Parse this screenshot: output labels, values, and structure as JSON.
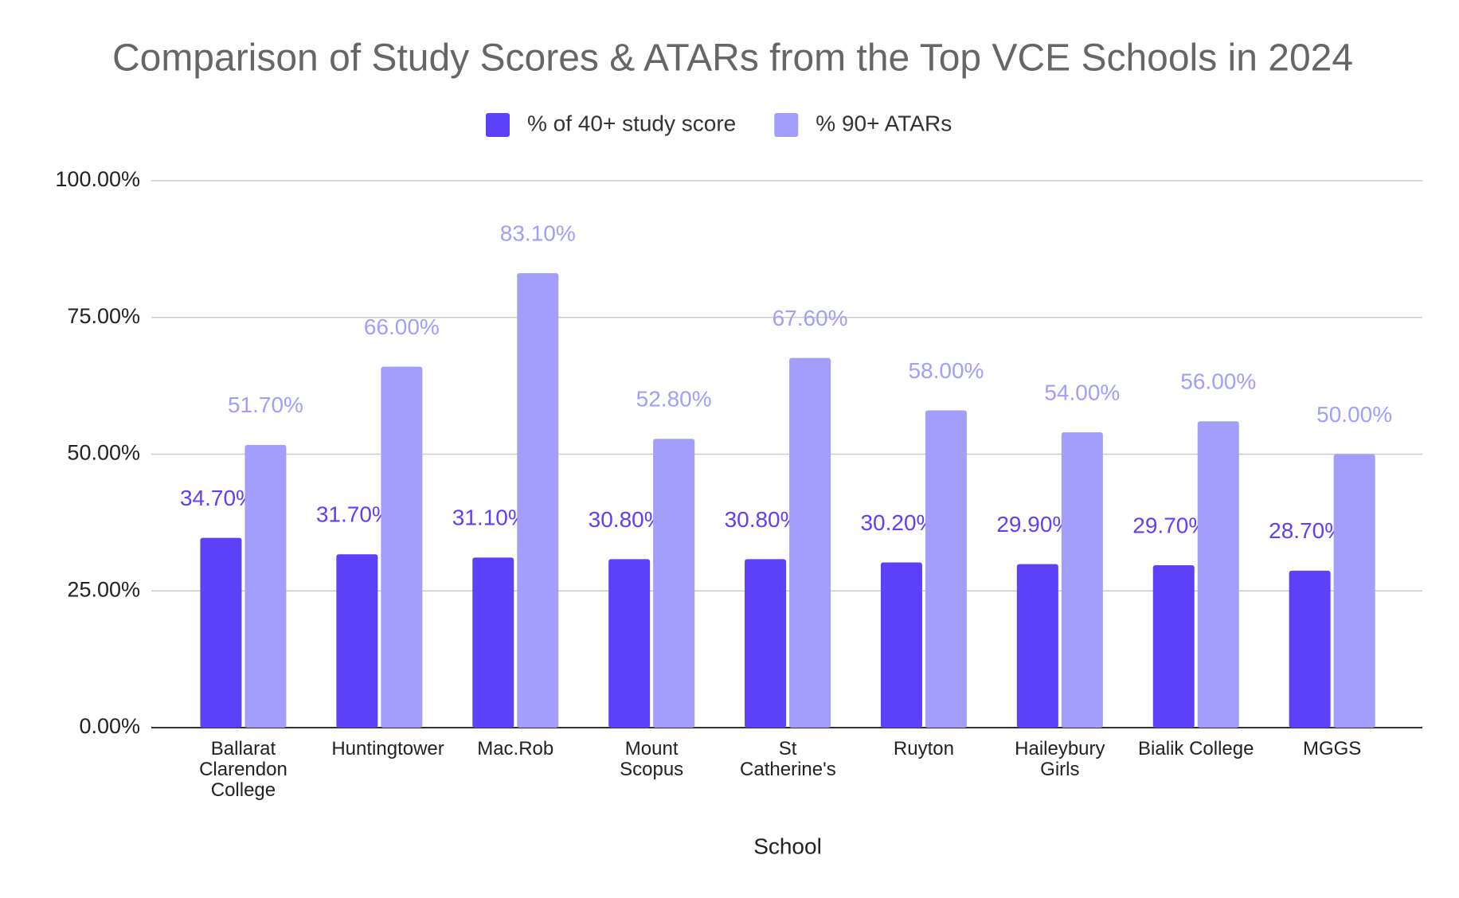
{
  "chart_data": {
    "type": "bar",
    "title": "Comparison of Study Scores & ATARs from the Top VCE Schools in 2024",
    "x_label": "School",
    "categories": [
      "Ballarat Clarendon College",
      "Huntingtower",
      "Mac.Rob",
      "Mount Scopus",
      "St Catherine's",
      "Ruyton",
      "Haileybury Girls",
      "Bialik College",
      "MGGS"
    ],
    "series": [
      {
        "name": "% of 40+ study score",
        "color": "#5c41f9",
        "values": [
          34.7,
          31.7,
          31.1,
          30.8,
          30.8,
          30.2,
          29.9,
          29.7,
          28.7
        ],
        "value_labels": [
          "34.70%",
          "31.70%",
          "31.10%",
          "30.80%",
          "30.80%",
          "30.20%",
          "29.90%",
          "29.70%",
          "28.70%"
        ]
      },
      {
        "name": "% 90+ ATARs",
        "color": "#a39efc",
        "values": [
          51.7,
          66.0,
          83.1,
          52.8,
          67.6,
          58.0,
          54.0,
          56.0,
          50.0
        ],
        "value_labels": [
          "51.70%",
          "66.00%",
          "83.10%",
          "52.80%",
          "67.60%",
          "58.00%",
          "54.00%",
          "56.00%",
          "50.00%"
        ]
      }
    ],
    "ylim": [
      0,
      100
    ],
    "yticks": [
      {
        "value": 0,
        "label": "0.00%"
      },
      {
        "value": 25,
        "label": "25.00%"
      },
      {
        "value": 50,
        "label": "50.00%"
      },
      {
        "value": 75,
        "label": "75.00%"
      },
      {
        "value": 100,
        "label": "100.00%"
      }
    ],
    "grid": true,
    "legend": "top"
  }
}
